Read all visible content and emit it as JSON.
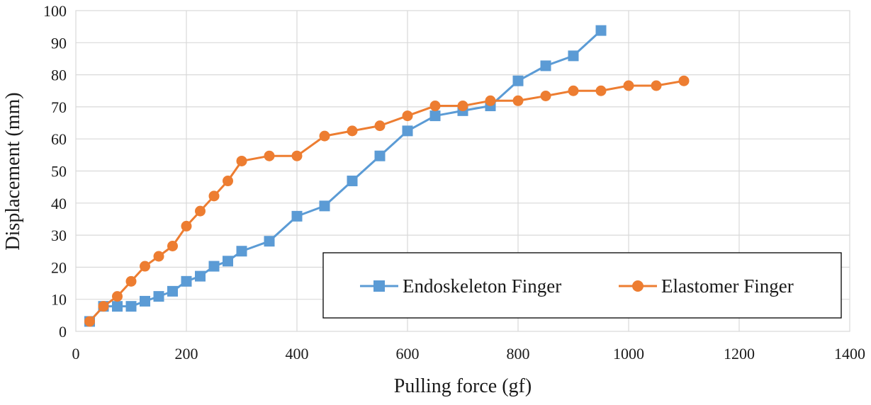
{
  "chart_data": {
    "type": "line",
    "title": "",
    "xlabel": "Pulling force (gf)",
    "ylabel": "Displacement (mm)",
    "xlim": [
      0,
      1400
    ],
    "ylim": [
      0,
      100
    ],
    "xticks": [
      0,
      200,
      400,
      600,
      800,
      1000,
      1200,
      1400
    ],
    "yticks": [
      0,
      10,
      20,
      30,
      40,
      50,
      60,
      70,
      80,
      90,
      100
    ],
    "grid": true,
    "legend_position": "lower-right",
    "series": [
      {
        "name": "Endoskeleton Finger",
        "color": "#5b9bd5",
        "marker": "square",
        "x": [
          25,
          50,
          75,
          100,
          125,
          150,
          175,
          200,
          225,
          250,
          275,
          300,
          350,
          400,
          450,
          500,
          550,
          600,
          650,
          700,
          750,
          800,
          850,
          900,
          950
        ],
        "y": [
          3.1,
          7.8,
          7.8,
          7.8,
          9.4,
          10.9,
          12.5,
          15.6,
          17.2,
          20.3,
          21.9,
          25.0,
          28.1,
          35.9,
          39.1,
          46.9,
          54.7,
          62.5,
          67.2,
          68.8,
          70.3,
          78.1,
          82.8,
          85.9,
          93.8
        ]
      },
      {
        "name": "Elastomer Finger",
        "color": "#ed7d31",
        "marker": "circle",
        "x": [
          25,
          50,
          75,
          100,
          125,
          150,
          175,
          200,
          225,
          250,
          275,
          300,
          350,
          400,
          450,
          500,
          550,
          600,
          650,
          700,
          750,
          800,
          850,
          900,
          950,
          1000,
          1050,
          1100
        ],
        "y": [
          3.1,
          7.8,
          10.9,
          15.6,
          20.3,
          23.4,
          26.6,
          32.8,
          37.5,
          42.2,
          46.9,
          53.1,
          54.7,
          54.7,
          60.9,
          62.5,
          64.1,
          67.2,
          70.3,
          70.3,
          71.9,
          71.9,
          73.4,
          75.0,
          75.0,
          76.6,
          76.6,
          78.1
        ]
      }
    ]
  }
}
